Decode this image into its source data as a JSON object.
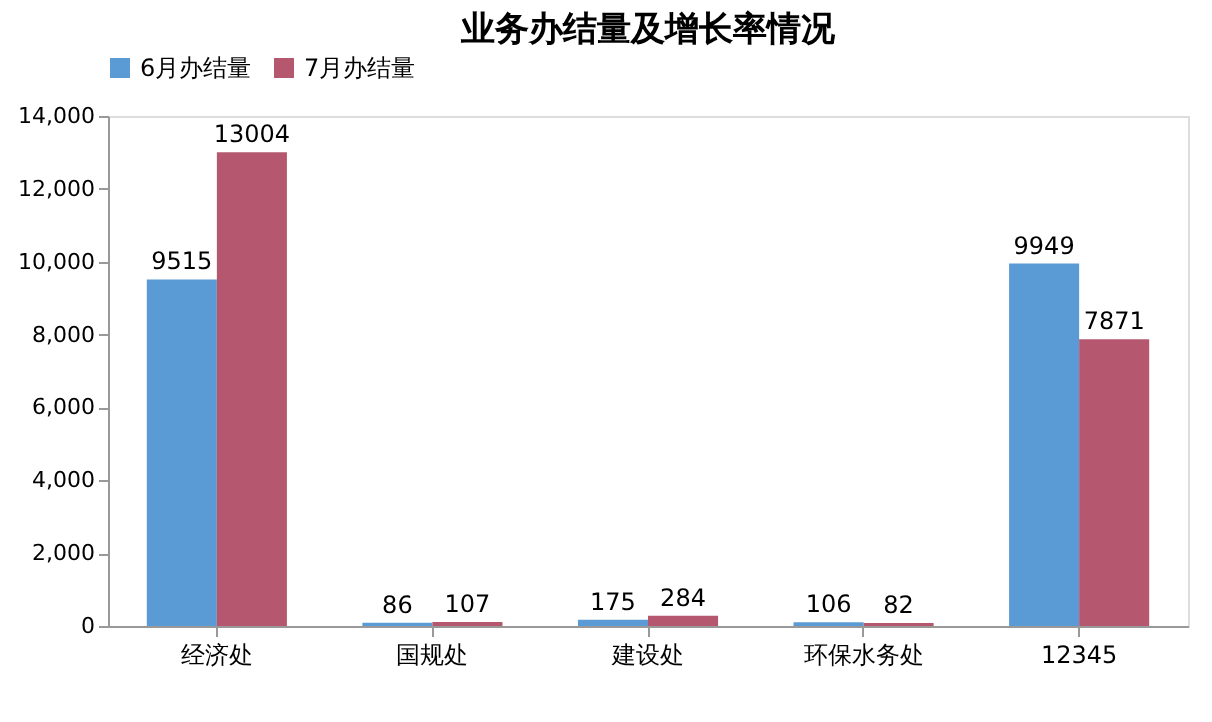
{
  "chart_data": {
    "type": "bar",
    "title": "业务办结量及增长率情况",
    "categories": [
      "经济处",
      "国规处",
      "建设处",
      "环保水务处",
      "12345"
    ],
    "series": [
      {
        "name": "6月办结量",
        "color": "#5b9bd5",
        "values": [
          9515,
          86,
          175,
          106,
          9949
        ]
      },
      {
        "name": "7月办结量",
        "color": "#b5586f",
        "values": [
          13004,
          107,
          284,
          82,
          7871
        ]
      }
    ],
    "ylim": [
      0,
      14000
    ],
    "yticks": [
      0,
      {
        "value": 2000,
        "label": "2,000"
      },
      {
        "value": 4000,
        "label": "4,000"
      },
      {
        "value": 6000,
        "label": "6,000"
      },
      {
        "value": 8000,
        "label": "8,000"
      },
      {
        "value": 10000,
        "label": "10,000"
      },
      {
        "value": 12000,
        "label": "12,000"
      },
      {
        "value": 14000,
        "label": "14,000"
      }
    ],
    "grid": false,
    "legend": "top",
    "data_labels": true
  }
}
